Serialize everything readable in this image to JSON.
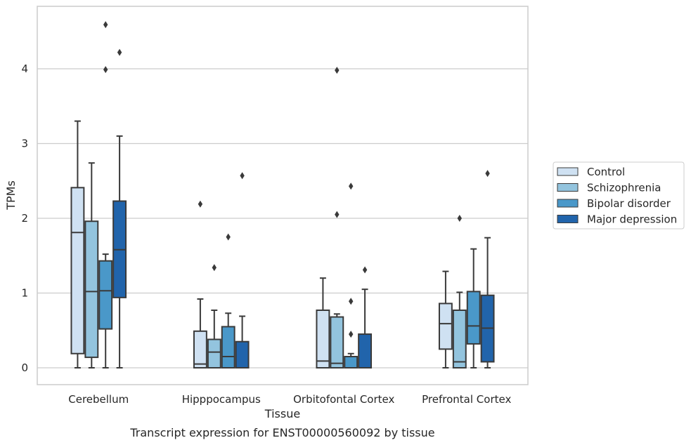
{
  "chart_data": {
    "type": "box",
    "title": "",
    "xlabel": "Tissue",
    "ylabel": "TPMs",
    "caption": "Transcript expression for ENST00000560092 by tissue",
    "ylim": [
      -0.22,
      4.84
    ],
    "yticks": [
      0,
      1,
      2,
      3,
      4
    ],
    "grid": "horizontal",
    "legend_position": "right",
    "categories": [
      "Cerebellum",
      "Hipppocampus",
      "Orbitofontal Cortex",
      "Prefrontal Cortex"
    ],
    "series": [
      {
        "name": "Control",
        "color": "#cfe1f2",
        "boxes": [
          {
            "whislo": 0,
            "q1": 0.19,
            "med": 1.81,
            "q3": 2.41,
            "whishi": 3.3,
            "fliers": []
          },
          {
            "whislo": 0,
            "q1": 0.0,
            "med": 0.05,
            "q3": 0.49,
            "whishi": 0.92,
            "fliers": [
              2.19
            ]
          },
          {
            "whislo": 0,
            "q1": 0.0,
            "med": 0.09,
            "q3": 0.77,
            "whishi": 1.2,
            "fliers": []
          },
          {
            "whislo": 0,
            "q1": 0.25,
            "med": 0.59,
            "q3": 0.86,
            "whishi": 1.29,
            "fliers": []
          }
        ]
      },
      {
        "name": "Schizophrenia",
        "color": "#93c4de",
        "boxes": [
          {
            "whislo": 0,
            "q1": 0.14,
            "med": 1.02,
            "q3": 1.96,
            "whishi": 2.74,
            "fliers": []
          },
          {
            "whislo": 0,
            "q1": 0.0,
            "med": 0.21,
            "q3": 0.38,
            "whishi": 0.77,
            "fliers": [
              1.34
            ]
          },
          {
            "whislo": 0,
            "q1": 0.0,
            "med": 0.06,
            "q3": 0.68,
            "whishi": 0.72,
            "fliers": [
              2.05,
              3.98
            ]
          },
          {
            "whislo": 0,
            "q1": 0.0,
            "med": 0.08,
            "q3": 0.77,
            "whishi": 1.01,
            "fliers": [
              2.0
            ]
          }
        ]
      },
      {
        "name": "Bipolar disorder",
        "color": "#4a98c9",
        "boxes": [
          {
            "whislo": 0,
            "q1": 0.52,
            "med": 1.03,
            "q3": 1.43,
            "whishi": 1.52,
            "fliers": [
              3.99,
              4.59
            ]
          },
          {
            "whislo": 0,
            "q1": 0.0,
            "med": 0.15,
            "q3": 0.55,
            "whishi": 0.73,
            "fliers": [
              1.75
            ]
          },
          {
            "whislo": 0,
            "q1": 0.0,
            "med": 0.0,
            "q3": 0.15,
            "whishi": 0.19,
            "fliers": [
              0.45,
              0.89,
              2.43
            ]
          },
          {
            "whislo": 0,
            "q1": 0.32,
            "med": 0.56,
            "q3": 1.02,
            "whishi": 1.59,
            "fliers": []
          }
        ]
      },
      {
        "name": "Major depression",
        "color": "#2164ab",
        "boxes": [
          {
            "whislo": 0,
            "q1": 0.94,
            "med": 1.58,
            "q3": 2.23,
            "whishi": 3.1,
            "fliers": [
              4.22
            ]
          },
          {
            "whislo": 0,
            "q1": 0.0,
            "med": 0.0,
            "q3": 0.35,
            "whishi": 0.69,
            "fliers": [
              2.57
            ]
          },
          {
            "whislo": 0,
            "q1": 0.0,
            "med": 0.0,
            "q3": 0.45,
            "whishi": 1.05,
            "fliers": [
              1.31
            ]
          },
          {
            "whislo": 0,
            "q1": 0.08,
            "med": 0.53,
            "q3": 0.97,
            "whishi": 1.74,
            "fliers": [
              2.6
            ]
          }
        ]
      }
    ]
  },
  "colors": {
    "line": "#3a3a3a",
    "grid": "#cccccc",
    "frame": "#cccccc",
    "text": "#262626"
  }
}
